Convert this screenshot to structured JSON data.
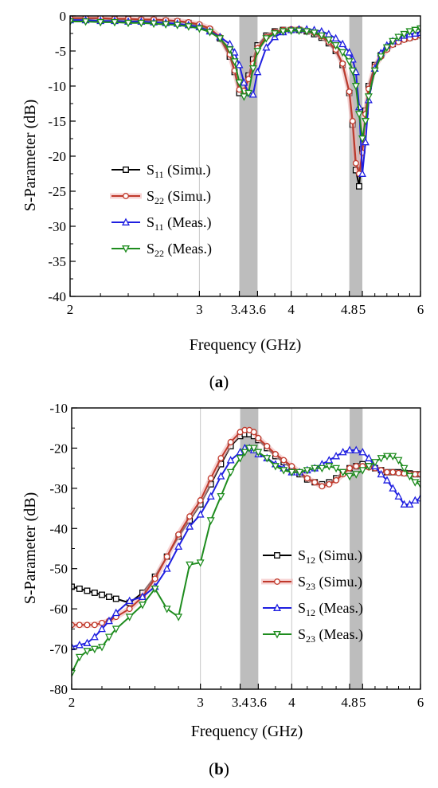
{
  "panels": [
    {
      "label_open": "(",
      "label_letter": "a",
      "label_close": ")",
      "xlabel": "Frequency (GHz)",
      "ylabel": "S-Parameter (dB)",
      "colors": {
        "s11_simu": "#000000",
        "s22_simu": "#c0392b",
        "s11_meas": "#1f1fe0",
        "s22_meas": "#1e8c1e",
        "band": "#bdbdbd"
      }
    },
    {
      "label_open": "(",
      "label_letter": "b",
      "label_close": ")",
      "xlabel": "Frequency (GHz)",
      "ylabel": "S-Parameter (dB)",
      "colors": {
        "s12_simu": "#000000",
        "s23_simu": "#c0392b",
        "s12_meas": "#1f1fe0",
        "s23_meas": "#1e8c1e",
        "band": "#bdbdbd"
      }
    }
  ],
  "chart_data": [
    {
      "type": "line",
      "xscale": "log",
      "xlim": [
        2,
        6
      ],
      "ylim": [
        -40,
        0
      ],
      "xticks": [
        2,
        3,
        3.4,
        3.6,
        4,
        4.8,
        5,
        6
      ],
      "xtick_labels": [
        "2",
        "3",
        "3.4",
        "3.6",
        "4",
        "4.8",
        "5",
        "6"
      ],
      "yticks": [
        0,
        -5,
        -10,
        -15,
        -20,
        -25,
        -30,
        -35,
        -40
      ],
      "ytick_labels": [
        "0",
        "-5",
        "-10",
        "-15",
        "-20",
        "-25",
        "-30",
        "-35",
        "-40"
      ],
      "bands": [
        [
          3.4,
          3.6
        ],
        [
          4.8,
          5.0
        ]
      ],
      "grid_x": [
        3,
        4
      ],
      "legend_position": "center-left",
      "series": [
        {
          "key": "s11_simu",
          "sym": "S",
          "sub": "11",
          "suffix": " (Simu.)",
          "marker": "square",
          "x": [
            2.0,
            2.1,
            2.2,
            2.3,
            2.4,
            2.5,
            2.6,
            2.7,
            2.8,
            2.9,
            3.0,
            3.1,
            3.2,
            3.3,
            3.35,
            3.4,
            3.45,
            3.5,
            3.55,
            3.6,
            3.7,
            3.8,
            3.9,
            4.0,
            4.1,
            4.2,
            4.3,
            4.4,
            4.5,
            4.6,
            4.7,
            4.8,
            4.85,
            4.9,
            4.95,
            5.0,
            5.05,
            5.1,
            5.2,
            5.3,
            5.4,
            5.5,
            5.6,
            5.7,
            5.8,
            5.9,
            6.0
          ],
          "y": [
            -0.4,
            -0.4,
            -0.4,
            -0.5,
            -0.5,
            -0.6,
            -0.6,
            -0.7,
            -0.8,
            -1.0,
            -1.4,
            -2.0,
            -3.2,
            -5.8,
            -8.0,
            -11.0,
            -10.8,
            -8.5,
            -6.2,
            -4.2,
            -2.8,
            -2.2,
            -2.0,
            -2.0,
            -2.0,
            -2.2,
            -2.6,
            -3.1,
            -3.9,
            -5.0,
            -7.0,
            -11.0,
            -15.5,
            -22.0,
            -24.3,
            -19.0,
            -13.5,
            -10.0,
            -7.0,
            -5.6,
            -4.6,
            -4.0,
            -3.6,
            -3.3,
            -3.1,
            -2.9,
            -2.7
          ]
        },
        {
          "key": "s22_simu",
          "sym": "S",
          "sub": "22",
          "suffix": " (Simu.)",
          "marker": "circle",
          "x": [
            2.0,
            2.1,
            2.2,
            2.3,
            2.4,
            2.5,
            2.6,
            2.7,
            2.8,
            2.9,
            3.0,
            3.1,
            3.2,
            3.3,
            3.35,
            3.4,
            3.45,
            3.5,
            3.55,
            3.6,
            3.7,
            3.8,
            3.9,
            4.0,
            4.1,
            4.2,
            4.3,
            4.4,
            4.5,
            4.6,
            4.7,
            4.8,
            4.85,
            4.9,
            4.95,
            5.0,
            5.05,
            5.1,
            5.2,
            5.3,
            5.4,
            5.5,
            5.6,
            5.7,
            5.8,
            5.9,
            6.0
          ],
          "y": [
            -0.3,
            -0.3,
            -0.3,
            -0.4,
            -0.4,
            -0.5,
            -0.5,
            -0.6,
            -0.7,
            -0.9,
            -1.2,
            -1.8,
            -3.0,
            -5.5,
            -7.8,
            -10.5,
            -10.7,
            -9.0,
            -6.8,
            -4.6,
            -3.0,
            -2.3,
            -2.0,
            -1.9,
            -1.9,
            -2.1,
            -2.4,
            -2.9,
            -3.7,
            -4.8,
            -6.8,
            -10.8,
            -15.0,
            -21.0,
            -22.5,
            -19.5,
            -14.0,
            -10.4,
            -7.2,
            -5.8,
            -4.8,
            -4.1,
            -3.7,
            -3.4,
            -3.2,
            -3.0,
            -2.8
          ]
        },
        {
          "key": "s11_meas",
          "sym": "S",
          "sub": "11",
          "suffix": " (Meas.)",
          "marker": "triangle-up",
          "x": [
            2.0,
            2.1,
            2.2,
            2.3,
            2.4,
            2.5,
            2.6,
            2.7,
            2.8,
            2.9,
            3.0,
            3.1,
            3.2,
            3.3,
            3.35,
            3.4,
            3.45,
            3.5,
            3.55,
            3.6,
            3.7,
            3.8,
            3.9,
            4.0,
            4.1,
            4.2,
            4.3,
            4.4,
            4.5,
            4.6,
            4.7,
            4.8,
            4.85,
            4.9,
            4.95,
            5.0,
            5.05,
            5.1,
            5.2,
            5.3,
            5.4,
            5.5,
            5.6,
            5.7,
            5.8,
            5.9,
            6.0
          ],
          "y": [
            -0.6,
            -0.6,
            -0.7,
            -0.7,
            -0.8,
            -0.8,
            -0.9,
            -1.0,
            -1.1,
            -1.3,
            -1.6,
            -2.2,
            -3.0,
            -4.0,
            -5.2,
            -7.0,
            -9.5,
            -11.0,
            -11.2,
            -8.0,
            -4.5,
            -3.0,
            -2.3,
            -2.0,
            -1.9,
            -1.9,
            -2.0,
            -2.2,
            -2.6,
            -3.2,
            -4.0,
            -5.2,
            -6.2,
            -8.0,
            -13.0,
            -22.5,
            -18.0,
            -12.0,
            -7.5,
            -5.3,
            -4.2,
            -3.6,
            -3.1,
            -2.8,
            -2.6,
            -2.5,
            -2.4
          ]
        },
        {
          "key": "s22_meas",
          "sym": "S",
          "sub": "22",
          "suffix": " (Meas.)",
          "marker": "triangle-down",
          "x": [
            2.0,
            2.1,
            2.2,
            2.3,
            2.4,
            2.5,
            2.6,
            2.7,
            2.8,
            2.9,
            3.0,
            3.1,
            3.2,
            3.3,
            3.35,
            3.4,
            3.45,
            3.5,
            3.55,
            3.6,
            3.7,
            3.8,
            3.9,
            4.0,
            4.1,
            4.2,
            4.3,
            4.4,
            4.5,
            4.6,
            4.7,
            4.8,
            4.85,
            4.9,
            4.95,
            5.0,
            5.05,
            5.1,
            5.2,
            5.3,
            5.4,
            5.5,
            5.6,
            5.7,
            5.8,
            5.9,
            6.0
          ],
          "y": [
            -0.8,
            -0.8,
            -0.9,
            -0.9,
            -1.0,
            -1.0,
            -1.1,
            -1.2,
            -1.3,
            -1.5,
            -1.8,
            -2.3,
            -3.2,
            -4.8,
            -6.5,
            -9.5,
            -11.5,
            -11.0,
            -7.5,
            -5.0,
            -3.2,
            -2.5,
            -2.2,
            -2.1,
            -2.1,
            -2.2,
            -2.4,
            -2.8,
            -3.4,
            -4.2,
            -5.2,
            -6.5,
            -7.8,
            -10.0,
            -14.0,
            -17.5,
            -15.0,
            -11.5,
            -7.8,
            -5.8,
            -4.5,
            -3.6,
            -3.0,
            -2.6,
            -2.2,
            -2.0,
            -1.8
          ]
        }
      ]
    },
    {
      "type": "line",
      "xscale": "log",
      "xlim": [
        2,
        6
      ],
      "ylim": [
        -80,
        -10
      ],
      "xticks": [
        2,
        3,
        3.4,
        3.6,
        4,
        4.8,
        5,
        6
      ],
      "xtick_labels": [
        "2",
        "3",
        "3.4",
        "3.6",
        "4",
        "4.8",
        "5",
        "6"
      ],
      "yticks": [
        -10,
        -20,
        -30,
        -40,
        -50,
        -60,
        -70,
        -80
      ],
      "ytick_labels": [
        "-10",
        "-20",
        "-30",
        "-40",
        "-50",
        "-60",
        "-70",
        "-80"
      ],
      "bands": [
        [
          3.4,
          3.6
        ],
        [
          4.8,
          5.0
        ]
      ],
      "grid_x": [
        3,
        4
      ],
      "legend_position": "bottom-right",
      "series": [
        {
          "key": "s12_simu",
          "sym": "S",
          "sub": "12",
          "suffix": " (Simu.)",
          "marker": "square",
          "x": [
            2.0,
            2.05,
            2.1,
            2.15,
            2.2,
            2.25,
            2.3,
            2.4,
            2.5,
            2.6,
            2.7,
            2.8,
            2.9,
            3.0,
            3.1,
            3.2,
            3.3,
            3.4,
            3.45,
            3.5,
            3.55,
            3.6,
            3.7,
            3.8,
            3.9,
            4.0,
            4.1,
            4.2,
            4.3,
            4.4,
            4.5,
            4.6,
            4.7,
            4.8,
            4.9,
            5.0,
            5.1,
            5.2,
            5.3,
            5.4,
            5.5,
            5.6,
            5.7,
            5.8,
            5.9,
            6.0
          ],
          "y": [
            -54.5,
            -55.0,
            -55.5,
            -56.0,
            -56.5,
            -57.0,
            -57.5,
            -58.5,
            -56.0,
            -52.0,
            -47.0,
            -42.0,
            -38.0,
            -34.0,
            -29.0,
            -24.0,
            -19.5,
            -17.0,
            -16.5,
            -16.5,
            -17.0,
            -18.0,
            -20.0,
            -22.0,
            -23.5,
            -25.0,
            -26.5,
            -27.8,
            -28.5,
            -29.0,
            -28.5,
            -27.5,
            -26.0,
            -25.0,
            -24.5,
            -24.0,
            -24.5,
            -25.0,
            -25.5,
            -26.0,
            -26.0,
            -26.0,
            -26.2,
            -26.3,
            -26.5,
            -26.5
          ]
        },
        {
          "key": "s23_simu",
          "sym": "S",
          "sub": "23",
          "suffix": " (Simu.)",
          "marker": "circle",
          "x": [
            2.0,
            2.05,
            2.1,
            2.15,
            2.2,
            2.25,
            2.3,
            2.4,
            2.5,
            2.6,
            2.7,
            2.8,
            2.9,
            3.0,
            3.1,
            3.2,
            3.3,
            3.4,
            3.45,
            3.5,
            3.55,
            3.6,
            3.7,
            3.8,
            3.9,
            4.0,
            4.1,
            4.2,
            4.3,
            4.4,
            4.5,
            4.6,
            4.7,
            4.8,
            4.9,
            5.0,
            5.1,
            5.2,
            5.3,
            5.4,
            5.5,
            5.6,
            5.7,
            5.8,
            5.9,
            6.0
          ],
          "y": [
            -64.0,
            -64.0,
            -64.0,
            -64.0,
            -63.5,
            -63.0,
            -62.0,
            -60.0,
            -57.0,
            -52.5,
            -47.0,
            -41.5,
            -37.0,
            -33.0,
            -27.5,
            -22.5,
            -18.5,
            -16.0,
            -15.5,
            -15.5,
            -16.0,
            -17.5,
            -19.5,
            -21.5,
            -23.0,
            -24.5,
            -26.0,
            -27.5,
            -28.5,
            -29.5,
            -29.0,
            -28.0,
            -26.5,
            -25.0,
            -24.5,
            -24.5,
            -24.8,
            -25.0,
            -25.5,
            -26.0,
            -26.0,
            -26.2,
            -26.3,
            -26.5,
            -26.5,
            -26.5
          ]
        },
        {
          "key": "s12_meas",
          "sym": "S",
          "sub": "12",
          "suffix": " (Meas.)",
          "marker": "triangle-up",
          "x": [
            2.0,
            2.05,
            2.1,
            2.15,
            2.2,
            2.25,
            2.3,
            2.4,
            2.5,
            2.6,
            2.7,
            2.8,
            2.9,
            3.0,
            3.1,
            3.2,
            3.3,
            3.4,
            3.45,
            3.5,
            3.55,
            3.6,
            3.7,
            3.8,
            3.9,
            4.0,
            4.1,
            4.2,
            4.3,
            4.4,
            4.5,
            4.6,
            4.7,
            4.8,
            4.9,
            5.0,
            5.1,
            5.2,
            5.3,
            5.4,
            5.5,
            5.6,
            5.7,
            5.8,
            5.9,
            6.0
          ],
          "y": [
            -69.5,
            -69.0,
            -68.5,
            -67.0,
            -65.0,
            -63.0,
            -61.0,
            -58.0,
            -57.0,
            -54.5,
            -50.0,
            -44.5,
            -39.5,
            -36.5,
            -32.0,
            -27.0,
            -23.0,
            -21.0,
            -20.0,
            -20.0,
            -20.5,
            -21.5,
            -22.5,
            -24.0,
            -25.0,
            -26.0,
            -26.0,
            -25.5,
            -25.0,
            -24.0,
            -23.0,
            -22.0,
            -21.0,
            -20.5,
            -20.5,
            -21.0,
            -22.5,
            -24.5,
            -26.5,
            -28.0,
            -30.0,
            -32.0,
            -34.0,
            -34.0,
            -33.0,
            -32.5
          ]
        },
        {
          "key": "s23_meas",
          "sym": "S",
          "sub": "23",
          "suffix": " (Meas.)",
          "marker": "triangle-down",
          "x": [
            2.0,
            2.05,
            2.1,
            2.15,
            2.2,
            2.25,
            2.3,
            2.4,
            2.5,
            2.6,
            2.7,
            2.8,
            2.9,
            3.0,
            3.1,
            3.2,
            3.3,
            3.4,
            3.45,
            3.5,
            3.55,
            3.6,
            3.7,
            3.8,
            3.9,
            4.0,
            4.1,
            4.2,
            4.3,
            4.4,
            4.5,
            4.6,
            4.7,
            4.8,
            4.9,
            5.0,
            5.1,
            5.2,
            5.3,
            5.4,
            5.5,
            5.6,
            5.7,
            5.8,
            5.9,
            6.0
          ],
          "y": [
            -76.0,
            -72.0,
            -70.5,
            -70.0,
            -69.5,
            -67.0,
            -65.0,
            -62.0,
            -59.0,
            -55.0,
            -60.0,
            -62.0,
            -49.0,
            -48.5,
            -38.0,
            -32.0,
            -26.0,
            -22.5,
            -21.0,
            -20.0,
            -20.0,
            -21.0,
            -22.5,
            -24.5,
            -25.5,
            -26.0,
            -26.0,
            -25.5,
            -25.0,
            -25.0,
            -24.5,
            -25.0,
            -26.0,
            -27.0,
            -26.5,
            -25.5,
            -24.5,
            -23.5,
            -22.5,
            -22.0,
            -22.0,
            -23.0,
            -25.0,
            -27.0,
            -28.5,
            -29.0
          ]
        }
      ]
    }
  ]
}
